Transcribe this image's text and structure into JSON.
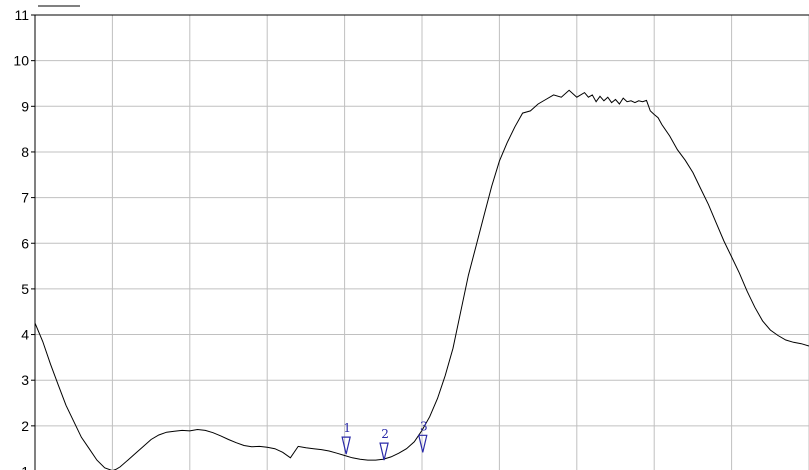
{
  "chart_data": {
    "type": "line",
    "title": "",
    "xlabel": "",
    "ylabel": "",
    "ylim": [
      1,
      11
    ],
    "xlim": [
      0,
      100
    ],
    "grid": true,
    "colors": {
      "line": "#000000",
      "grid": "#c0c0c0",
      "marker": "#2a2aa8",
      "axis": "#000000"
    },
    "y_ticks": [
      {
        "value": 1,
        "label": "1"
      },
      {
        "value": 2,
        "label": "2"
      },
      {
        "value": 3,
        "label": "3"
      },
      {
        "value": 4,
        "label": "4"
      },
      {
        "value": 5,
        "label": "5"
      },
      {
        "value": 6,
        "label": "6"
      },
      {
        "value": 7,
        "label": "7"
      },
      {
        "value": 8,
        "label": "8"
      },
      {
        "value": 9,
        "label": "9"
      },
      {
        "value": 10,
        "label": "10"
      },
      {
        "value": 11,
        "label": "11"
      }
    ],
    "x_gridlines": [
      0,
      10,
      20,
      30,
      40,
      50,
      60,
      70,
      80,
      90,
      100
    ],
    "series": [
      {
        "x": [
          0,
          1,
          2,
          3,
          4,
          5,
          6,
          7,
          8,
          9,
          10,
          10.5,
          11,
          12,
          13,
          14,
          15,
          16,
          17,
          18,
          19,
          20,
          21,
          22,
          23,
          24,
          25,
          26,
          27,
          28,
          29,
          30,
          31,
          32,
          33,
          34,
          35,
          36,
          37,
          38,
          39,
          40,
          41,
          42,
          43,
          44,
          45,
          46,
          47,
          48,
          49,
          50,
          51,
          52,
          53,
          54,
          55,
          56,
          57,
          58,
          59,
          60,
          61,
          62,
          63,
          64,
          65,
          66,
          67,
          68,
          69,
          70,
          71,
          71.5,
          72,
          72.5,
          73,
          73.5,
          74,
          74.5,
          75,
          75.5,
          76,
          76.5,
          77,
          77.5,
          78,
          78.5,
          79,
          79.5,
          80,
          80.5,
          81,
          82,
          83,
          84,
          85,
          86,
          87,
          88,
          89,
          90,
          91,
          92,
          93,
          94,
          95,
          96,
          97,
          98,
          99,
          100
        ],
        "y": [
          4.25,
          3.85,
          3.35,
          2.9,
          2.45,
          2.1,
          1.75,
          1.5,
          1.25,
          1.08,
          1.02,
          1.05,
          1.1,
          1.25,
          1.4,
          1.55,
          1.7,
          1.8,
          1.86,
          1.88,
          1.9,
          1.89,
          1.92,
          1.9,
          1.85,
          1.78,
          1.7,
          1.63,
          1.57,
          1.54,
          1.55,
          1.53,
          1.5,
          1.42,
          1.3,
          1.55,
          1.52,
          1.5,
          1.48,
          1.45,
          1.4,
          1.35,
          1.3,
          1.27,
          1.25,
          1.25,
          1.27,
          1.32,
          1.4,
          1.5,
          1.65,
          1.9,
          2.2,
          2.6,
          3.1,
          3.7,
          4.5,
          5.3,
          5.95,
          6.6,
          7.25,
          7.8,
          8.2,
          8.55,
          8.85,
          8.9,
          9.05,
          9.15,
          9.25,
          9.2,
          9.35,
          9.2,
          9.3,
          9.2,
          9.25,
          9.1,
          9.22,
          9.12,
          9.2,
          9.08,
          9.15,
          9.05,
          9.18,
          9.1,
          9.12,
          9.08,
          9.12,
          9.1,
          9.13,
          8.9,
          8.82,
          8.75,
          8.6,
          8.35,
          8.05,
          7.82,
          7.55,
          7.2,
          6.85,
          6.45,
          6.05,
          5.7,
          5.35,
          4.95,
          4.6,
          4.3,
          4.1,
          3.98,
          3.88,
          3.83,
          3.8,
          3.75
        ]
      }
    ],
    "markers": [
      {
        "label": "1",
        "x": 40.2,
        "y": 1.38
      },
      {
        "label": "2",
        "x": 45.1,
        "y": 1.25
      },
      {
        "label": "3",
        "x": 50.1,
        "y": 1.42
      }
    ]
  }
}
